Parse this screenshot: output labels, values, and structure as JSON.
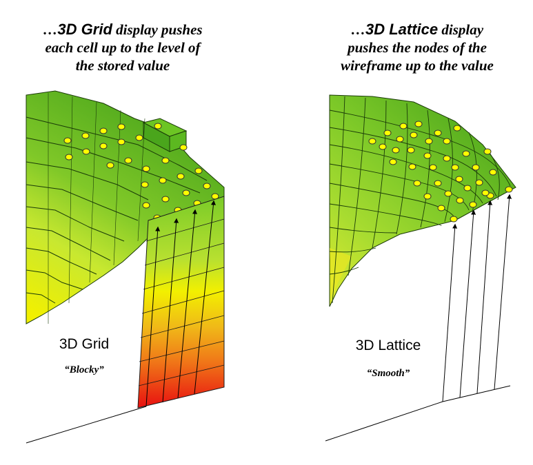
{
  "left_panel": {
    "caption": {
      "prefix": "…",
      "emphasis": "3D Grid",
      "line1_rest": " display pushes",
      "line2": "each cell up to the level of",
      "line3": "the stored value"
    },
    "title": "3D Grid",
    "subtitle": "“Blocky”"
  },
  "right_panel": {
    "caption": {
      "prefix": "…",
      "emphasis": "3D Lattice",
      "line1_rest": " display",
      "line2": "pushes the nodes of the",
      "line3": "wireframe up to the value"
    },
    "title": "3D Lattice",
    "subtitle": "“Smooth”"
  },
  "colors": {
    "green_dark": "#4aa51c",
    "green_mid": "#6cc524",
    "green_light": "#9ad832",
    "yellow_green": "#c8e830",
    "yellow": "#f2f000",
    "orange": "#f0a018",
    "red": "#e81818",
    "node_fill": "#ffff00",
    "line": "#000000"
  }
}
